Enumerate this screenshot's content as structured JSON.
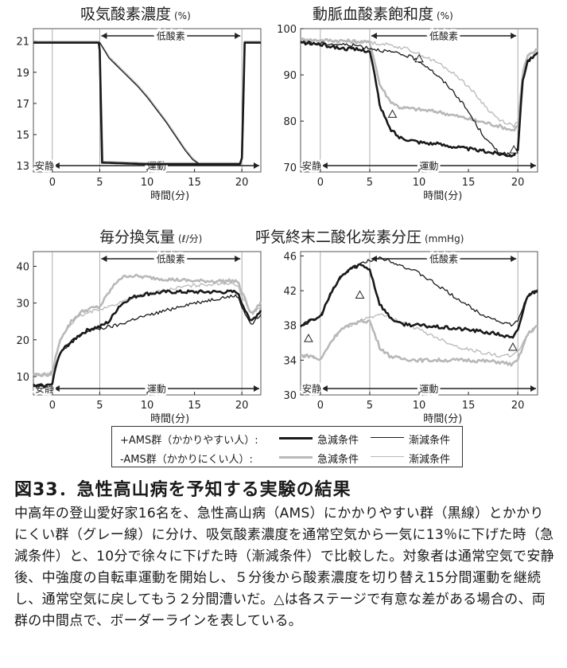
{
  "figure": {
    "title": "図33．急性高山病を予知する実験の結果",
    "caption": "中高年の登山愛好家16名を、急性高山病（AMS）にかかりやすい群（黒線）とかかりにくい群（グレー線）に分け、吸気酸素濃度を通常空気から一気に13％に下げた時（急減条件）と、10分で徐々に下げた時（漸減条件）で比較した。対象者は通常空気で安静後、中強度の自転車運動を開始し、５分後から酸素濃度を切り替え15分間運動を継続し、通常空気に戻してもう２分間漕いだ。△は各ステージで有意な差がある場合の、両群の中間点で、ボーダーラインを表している。"
  },
  "legend": {
    "group1_label": "+AMS群（かかりやすい人）:",
    "group2_label": "-AMS群（かかりにくい人）:",
    "rapid_label": "急減条件",
    "gradual_label": "漸減条件"
  },
  "colors": {
    "ams_pos": "#1a1a1a",
    "ams_neg": "#b8b8b8",
    "axis": "#222222",
    "vline": "#999999"
  },
  "chart_data": [
    {
      "type": "line",
      "title": "吸気酸素濃度",
      "unit": "(%)",
      "xlabel": "時間(分)",
      "xlim": [
        -2,
        22
      ],
      "ylim": [
        12.6,
        21.8
      ],
      "xticks": [
        0,
        5,
        10,
        15,
        20
      ],
      "yticks": [
        13,
        15,
        17,
        19,
        21
      ],
      "rest_label": "安静",
      "exercise_label": "運動",
      "hypoxia_label": "低酸素",
      "series": [
        {
          "name": "+AMS群 急減条件",
          "group": "pos",
          "condition": "rapid",
          "x": [
            -2,
            4.9,
            5.0,
            5.25,
            10,
            15,
            19.8,
            20.0,
            20.3,
            22
          ],
          "y": [
            20.9,
            20.9,
            20.4,
            13.2,
            13.1,
            13.1,
            13.1,
            13.5,
            20.9,
            20.9
          ]
        },
        {
          "name": "+AMS群 漸減条件",
          "group": "pos",
          "condition": "gradual",
          "x": [
            -2,
            5,
            6,
            7,
            8,
            9,
            10,
            11,
            12,
            13,
            14,
            14.8,
            15.5,
            19.8,
            20.0,
            20.3,
            22
          ],
          "y": [
            20.9,
            20.9,
            19.9,
            19.3,
            18.7,
            18.1,
            17.4,
            16.6,
            15.8,
            14.9,
            14.0,
            13.4,
            13.1,
            13.1,
            13.5,
            20.9,
            20.9
          ]
        },
        {
          "name": "-AMS群 急減条件",
          "group": "neg",
          "condition": "rapid",
          "x": [
            -2,
            4.9,
            5.0,
            5.3,
            10,
            15,
            19.8,
            20.0,
            20.3,
            22
          ],
          "y": [
            20.95,
            20.95,
            20.4,
            13.25,
            13.15,
            13.15,
            13.15,
            13.5,
            20.95,
            20.95
          ]
        },
        {
          "name": "-AMS群 漸減条件",
          "group": "neg",
          "condition": "gradual",
          "x": [
            -2,
            5,
            6,
            7,
            8,
            9,
            10,
            11,
            12,
            13,
            14,
            14.8,
            15.5,
            19.8,
            20.0,
            20.3,
            22
          ],
          "y": [
            20.95,
            20.95,
            20.0,
            19.4,
            18.8,
            18.2,
            17.5,
            16.7,
            15.9,
            15.0,
            14.1,
            13.5,
            13.15,
            13.15,
            13.5,
            20.95,
            20.95
          ]
        }
      ],
      "markers": []
    },
    {
      "type": "line",
      "title": "動脈血酸素飽和度",
      "unit": "(%)",
      "xlabel": "時間(分)",
      "xlim": [
        -2,
        22
      ],
      "ylim": [
        69,
        100
      ],
      "xticks": [
        0,
        5,
        10,
        15,
        20
      ],
      "yticks": [
        70,
        80,
        90,
        100
      ],
      "rest_label": "安静",
      "exercise_label": "運動",
      "hypoxia_label": "低酸素",
      "series": [
        {
          "name": "+AMS群 急減条件",
          "group": "pos",
          "condition": "rapid",
          "x": [
            -2,
            0,
            2,
            4,
            5,
            5.5,
            6,
            7,
            8,
            9,
            10,
            12,
            15,
            18,
            19.5,
            20,
            20.5,
            21,
            22
          ],
          "y": [
            97,
            96.6,
            95.8,
            95.4,
            95.2,
            90,
            83.5,
            78.5,
            76.5,
            76,
            75.5,
            75,
            74,
            73,
            72.6,
            74,
            89,
            93,
            94.5
          ]
        },
        {
          "name": "+AMS群 漸減条件",
          "group": "pos",
          "condition": "gradual",
          "x": [
            -2,
            0,
            2,
            4,
            5,
            6,
            7,
            8,
            9,
            10,
            11,
            12,
            13,
            14,
            15,
            16,
            17,
            18,
            19,
            19.6,
            20,
            20.5,
            21,
            22
          ],
          "y": [
            97,
            96.8,
            96.6,
            96.3,
            95.8,
            95.4,
            95,
            94.5,
            94,
            93,
            91.5,
            89.5,
            87.5,
            85,
            82,
            78.5,
            75.5,
            73.5,
            72.8,
            72.5,
            74,
            89,
            93,
            94.5
          ]
        },
        {
          "name": "-AMS群 急減条件",
          "group": "neg",
          "condition": "rapid",
          "x": [
            -2,
            0,
            2,
            4,
            5,
            5.5,
            6,
            7,
            8,
            10,
            12,
            15,
            18,
            19.5,
            20,
            20.5,
            21,
            22
          ],
          "y": [
            97.6,
            97.5,
            97.4,
            97.2,
            97,
            93,
            88,
            84.5,
            83,
            82.5,
            82,
            80.5,
            79,
            78,
            79,
            90,
            94,
            95.5
          ]
        },
        {
          "name": "-AMS群 漸減条件",
          "group": "neg",
          "condition": "gradual",
          "x": [
            -2,
            0,
            2,
            4,
            5,
            6,
            7,
            8,
            9,
            10,
            11,
            12,
            13,
            14,
            15,
            16,
            17,
            18,
            19,
            19.6,
            20,
            20.5,
            21,
            22
          ],
          "y": [
            97.6,
            97.5,
            97.3,
            97.2,
            97,
            96.8,
            96.5,
            96,
            95.5,
            94.5,
            93.5,
            92.5,
            91,
            89.5,
            87.5,
            85,
            82.5,
            80.5,
            79.5,
            79,
            80,
            91,
            94,
            95.5
          ]
        }
      ],
      "markers": [
        {
          "x": 10.0,
          "y": 93.5
        },
        {
          "x": 7.3,
          "y": 81.5
        },
        {
          "x": 19.6,
          "y": 73.8
        }
      ]
    },
    {
      "type": "line",
      "title": "毎分換気量",
      "unit": "(ℓ/分)",
      "xlabel": "時間(分)",
      "xlim": [
        -2,
        22
      ],
      "ylim": [
        5,
        44
      ],
      "xticks": [
        0,
        5,
        10,
        15,
        20
      ],
      "yticks": [
        10,
        20,
        30,
        40
      ],
      "rest_label": "安静",
      "exercise_label": "運動",
      "hypoxia_label": "低酸素",
      "series": [
        {
          "name": "+AMS群 急減条件",
          "group": "pos",
          "condition": "rapid",
          "x": [
            -2,
            -0.5,
            0,
            0.5,
            1,
            2,
            3,
            4,
            5,
            6,
            7,
            8,
            9,
            10,
            12,
            15,
            18,
            19.5,
            20,
            21,
            22
          ],
          "y": [
            7.5,
            7.5,
            8.5,
            14,
            17,
            19.5,
            21.5,
            23,
            23.5,
            25,
            29,
            31,
            32,
            32.5,
            33,
            33,
            33,
            33,
            30,
            25,
            28
          ]
        },
        {
          "name": "+AMS群 漸減条件",
          "group": "pos",
          "condition": "gradual",
          "x": [
            -2,
            -0.5,
            0,
            0.5,
            1,
            2,
            3,
            4,
            5,
            6,
            7,
            8,
            9,
            10,
            12,
            14,
            16,
            18,
            19.5,
            20,
            21,
            22
          ],
          "y": [
            7.5,
            7.5,
            8.5,
            14,
            17,
            19.5,
            21.5,
            22.5,
            23,
            23.5,
            24,
            25,
            26,
            26.5,
            28,
            29.5,
            30.5,
            31.5,
            32,
            29,
            24,
            27
          ]
        },
        {
          "name": "-AMS群 急減条件",
          "group": "neg",
          "condition": "rapid",
          "x": [
            -2,
            -0.5,
            0,
            0.5,
            1,
            2,
            3,
            4,
            5,
            6,
            7,
            8,
            10,
            12,
            15,
            18,
            19.5,
            20,
            21,
            22
          ],
          "y": [
            10.5,
            10.5,
            11,
            17,
            21,
            25,
            27.5,
            28.5,
            29,
            33,
            36.5,
            37.5,
            37,
            36.5,
            36,
            36,
            36,
            33,
            27,
            30
          ]
        },
        {
          "name": "-AMS群 漸減条件",
          "group": "neg",
          "condition": "gradual",
          "x": [
            -2,
            -0.5,
            0,
            0.5,
            1,
            2,
            3,
            4,
            5,
            6,
            7,
            8,
            10,
            12,
            14,
            16,
            18,
            19.5,
            20,
            21,
            22
          ],
          "y": [
            10.5,
            10.5,
            11,
            17,
            21,
            24.5,
            26.5,
            27.5,
            28.5,
            29,
            30,
            31,
            32.5,
            33.5,
            34.5,
            35,
            35.5,
            35,
            32,
            27,
            29
          ]
        }
      ],
      "markers": []
    },
    {
      "type": "line",
      "title": "呼気終末二酸化炭素分圧",
      "unit": "(mmHg)",
      "xlabel": "時間(分)",
      "xlim": [
        -2,
        22
      ],
      "ylim": [
        30,
        46.5
      ],
      "xticks": [
        0,
        5,
        10,
        15,
        20
      ],
      "yticks": [
        30,
        34,
        38,
        42,
        46
      ],
      "rest_label": "安静",
      "exercise_label": "運動",
      "hypoxia_label": "低酸素",
      "series": [
        {
          "name": "+AMS群 急減条件",
          "group": "pos",
          "condition": "rapid",
          "x": [
            -2,
            -1,
            0,
            1,
            2,
            3,
            4,
            5,
            5.5,
            6,
            7,
            8,
            10,
            12,
            15,
            18,
            19.5,
            20,
            21,
            22
          ],
          "y": [
            38,
            38.5,
            39,
            41.5,
            43.5,
            44.5,
            45,
            44.5,
            42.5,
            40.5,
            39,
            38.2,
            38,
            37.8,
            37.5,
            37,
            36.5,
            37.5,
            41.5,
            42
          ]
        },
        {
          "name": "+AMS群 漸減条件",
          "group": "pos",
          "condition": "gradual",
          "x": [
            -2,
            -1,
            0,
            1,
            2,
            3,
            4,
            5,
            6,
            7,
            8,
            10,
            12,
            14,
            16,
            18,
            19.5,
            20,
            21,
            22
          ],
          "y": [
            38,
            38.5,
            39,
            41.5,
            43.5,
            44.5,
            45,
            45.5,
            45.8,
            45.5,
            45,
            44,
            42.5,
            41,
            39.5,
            38.5,
            38,
            38.5,
            41.5,
            42
          ]
        },
        {
          "name": "-AMS群 急減条件",
          "group": "neg",
          "condition": "rapid",
          "x": [
            -2,
            -1,
            0,
            1,
            2,
            3,
            4,
            5,
            5.5,
            6,
            7,
            8,
            10,
            12,
            15,
            18,
            19.5,
            20,
            21,
            22
          ],
          "y": [
            34.5,
            34.5,
            34,
            36,
            37.5,
            38,
            38.5,
            38.5,
            37,
            35.5,
            34.5,
            34.2,
            34,
            34,
            34,
            33.8,
            33.5,
            34,
            37,
            38
          ]
        },
        {
          "name": "-AMS群 漸減条件",
          "group": "neg",
          "condition": "gradual",
          "x": [
            -2,
            -1,
            0,
            1,
            2,
            3,
            4,
            5,
            6,
            7,
            8,
            10,
            12,
            14,
            16,
            18,
            19.5,
            20,
            21,
            22
          ],
          "y": [
            34.5,
            34.5,
            34,
            36,
            37.5,
            38,
            38.5,
            39,
            39.2,
            39,
            38.5,
            37.5,
            36.5,
            35.5,
            35,
            34.5,
            34.5,
            35,
            37,
            38
          ]
        }
      ],
      "markers": [
        {
          "x": -1.2,
          "y": 36.5
        },
        {
          "x": 4.0,
          "y": 41.5
        },
        {
          "x": 19.5,
          "y": 35.5
        }
      ]
    }
  ]
}
